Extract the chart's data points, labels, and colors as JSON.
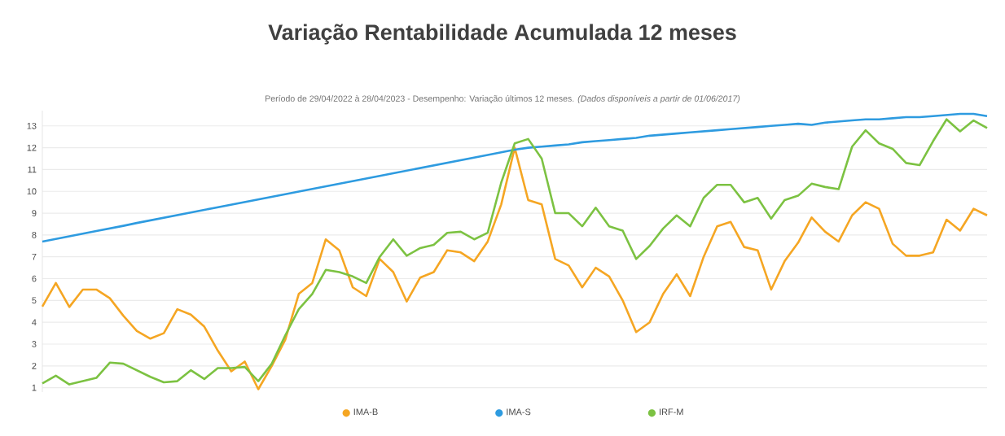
{
  "chart_data": {
    "type": "line",
    "title": "Variação Rentabilidade Acumulada 12 meses",
    "subtitle": "Período de 29/04/2022 à 28/04/2023 - Desempenho: Variação últimos 12 meses. *(Dados disponíveis a partir de 01/06/2017)*",
    "categories": [
      null,
      null,
      null,
      null,
      null,
      null,
      null,
      null,
      null,
      null,
      null,
      null,
      null,
      null,
      null,
      null,
      null,
      null,
      null,
      null,
      null,
      null,
      null,
      null,
      null,
      null,
      null,
      null,
      null,
      null,
      null,
      null,
      null,
      null,
      null,
      null,
      null,
      null,
      null,
      null,
      null,
      null,
      null,
      null,
      null,
      null,
      null,
      null,
      null,
      null,
      null,
      null,
      null,
      null,
      null,
      null,
      null,
      null,
      null,
      null,
      null,
      null,
      null,
      null,
      null,
      null,
      null,
      null,
      null,
      null,
      null
    ],
    "series": [
      {
        "name": "IMA-B",
        "color": "#f5a623",
        "values": [
          4.72,
          5.8,
          4.7,
          5.5,
          5.5,
          5.1,
          4.3,
          3.6,
          3.25,
          3.5,
          4.6,
          4.35,
          3.8,
          2.7,
          1.75,
          2.2,
          0.93,
          2.0,
          3.2,
          5.3,
          5.8,
          7.8,
          7.3,
          5.6,
          5.2,
          6.9,
          6.3,
          4.95,
          6.05,
          6.3,
          7.3,
          7.2,
          6.8,
          7.7,
          9.4,
          12.0,
          9.6,
          9.4,
          6.9,
          6.6,
          5.6,
          6.5,
          6.1,
          5.0,
          3.55,
          4.0,
          5.3,
          6.2,
          5.2,
          7.0,
          8.4,
          8.6,
          7.45,
          7.3,
          5.5,
          6.8,
          7.65,
          8.8,
          8.15,
          7.7,
          8.9,
          9.5,
          9.2,
          7.6,
          7.05,
          7.05,
          7.2,
          8.7,
          8.2,
          9.2,
          8.9
        ]
      },
      {
        "name": "IMA-S",
        "color": "#2e9be0",
        "values": [
          7.7,
          7.82,
          7.94,
          8.06,
          8.18,
          8.3,
          8.42,
          8.55,
          8.67,
          8.79,
          8.91,
          9.03,
          9.15,
          9.27,
          9.39,
          9.51,
          9.63,
          9.75,
          9.87,
          9.99,
          10.11,
          10.23,
          10.35,
          10.47,
          10.59,
          10.71,
          10.83,
          10.95,
          11.07,
          11.19,
          11.31,
          11.43,
          11.55,
          11.67,
          11.79,
          11.91,
          12.0,
          12.05,
          12.1,
          12.15,
          12.25,
          12.3,
          12.35,
          12.4,
          12.45,
          12.55,
          12.6,
          12.65,
          12.7,
          12.75,
          12.8,
          12.85,
          12.9,
          12.95,
          13.0,
          13.05,
          13.1,
          13.05,
          13.15,
          13.2,
          13.25,
          13.3,
          13.3,
          13.35,
          13.4,
          13.4,
          13.45,
          13.5,
          13.55,
          13.55,
          13.45
        ]
      },
      {
        "name": "IRF-M",
        "color": "#7cc242",
        "values": [
          1.2,
          1.55,
          1.15,
          1.3,
          1.45,
          2.15,
          2.1,
          1.8,
          1.5,
          1.25,
          1.3,
          1.8,
          1.4,
          1.9,
          1.9,
          1.95,
          1.3,
          2.1,
          3.4,
          4.6,
          5.3,
          6.4,
          6.3,
          6.1,
          5.8,
          7.0,
          7.8,
          7.05,
          7.4,
          7.55,
          8.1,
          8.15,
          7.8,
          8.1,
          10.4,
          12.2,
          12.4,
          11.5,
          9.0,
          9.0,
          8.4,
          9.25,
          8.4,
          8.2,
          6.9,
          7.5,
          8.3,
          8.9,
          8.4,
          9.7,
          10.3,
          10.3,
          9.5,
          9.7,
          8.75,
          9.6,
          9.8,
          10.35,
          10.2,
          10.1,
          12.05,
          12.8,
          12.2,
          11.95,
          11.3,
          11.2,
          12.3,
          13.3,
          12.75,
          13.25,
          12.9
        ]
      }
    ],
    "ylim": [
      0.8,
      13.7
    ],
    "yticks": [
      1,
      2,
      3,
      4,
      5,
      6,
      7,
      8,
      9,
      10,
      11,
      12,
      13
    ],
    "grid": "y",
    "legend": "bottom",
    "tick_labels": "y"
  }
}
